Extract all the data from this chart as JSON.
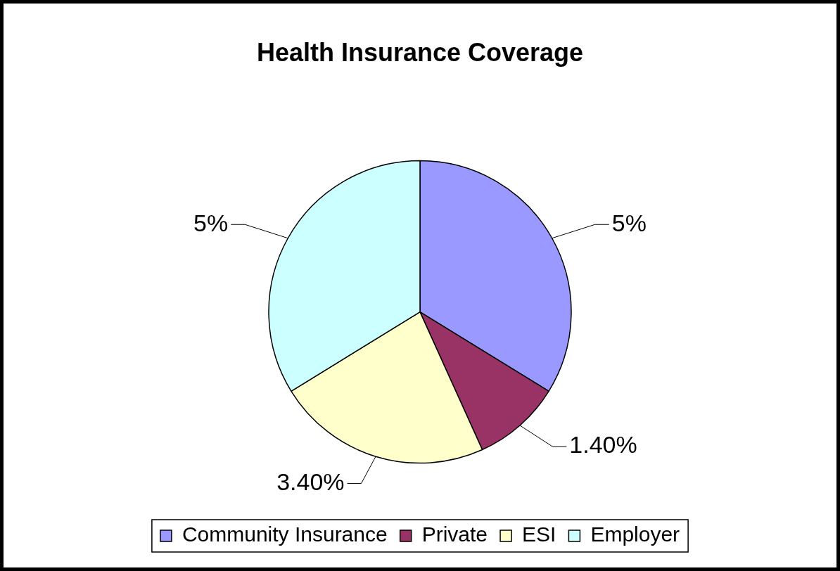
{
  "chart_data": {
    "type": "pie",
    "title": "Health Insurance Coverage",
    "categories": [
      "Community Insurance",
      "Private",
      "ESI",
      "Employer"
    ],
    "values": [
      5,
      1.4,
      3.4,
      5
    ],
    "value_labels": [
      "5%",
      "1.40%",
      "3.40%",
      "5%"
    ],
    "colors": [
      "#9999ff",
      "#993366",
      "#ffffcc",
      "#ccffff"
    ],
    "legend": "bottom"
  }
}
